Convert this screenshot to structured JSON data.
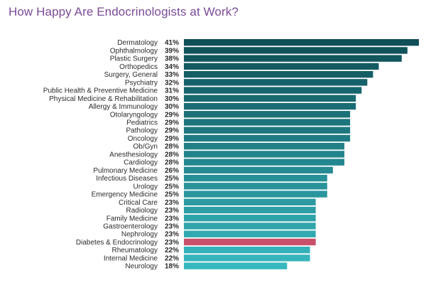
{
  "colors": {
    "title": "#7b4a97",
    "highlight": "#c8506b",
    "bar_top": "#0f4f57",
    "bar_bottom": "#37b8bf"
  },
  "chart_data": {
    "type": "bar",
    "orientation": "horizontal",
    "title": "How Happy Are Endocrinologists at Work?",
    "value_format": "percent",
    "xlim": [
      0,
      41
    ],
    "grid": false,
    "highlight_category": "Diabetes & Endocrinology",
    "categories": [
      "Dermatology",
      "Ophthalmology",
      "Plastic Surgery",
      "Orthopedics",
      "Surgery, General",
      "Psychiatry",
      "Public Health & Preventive Medicine",
      "Physical Medicine & Rehabilitation",
      "Allergy & Immunology",
      "Otolaryngology",
      "Pediatrics",
      "Pathology",
      "Oncology",
      "Ob/Gyn",
      "Anesthesiology",
      "Cardiology",
      "Pulmonary Medicine",
      "Infectious Diseases",
      "Urology",
      "Emergency Medicine",
      "Critical Care",
      "Radiology",
      "Family Medicine",
      "Gastroenterology",
      "Nephrology",
      "Diabetes & Endocrinology",
      "Rheumatology",
      "Internal Medicine",
      "Neurology"
    ],
    "values": [
      41,
      39,
      38,
      34,
      33,
      32,
      31,
      30,
      30,
      29,
      29,
      29,
      29,
      28,
      28,
      28,
      26,
      25,
      25,
      25,
      23,
      23,
      23,
      23,
      23,
      23,
      22,
      22,
      18
    ]
  }
}
